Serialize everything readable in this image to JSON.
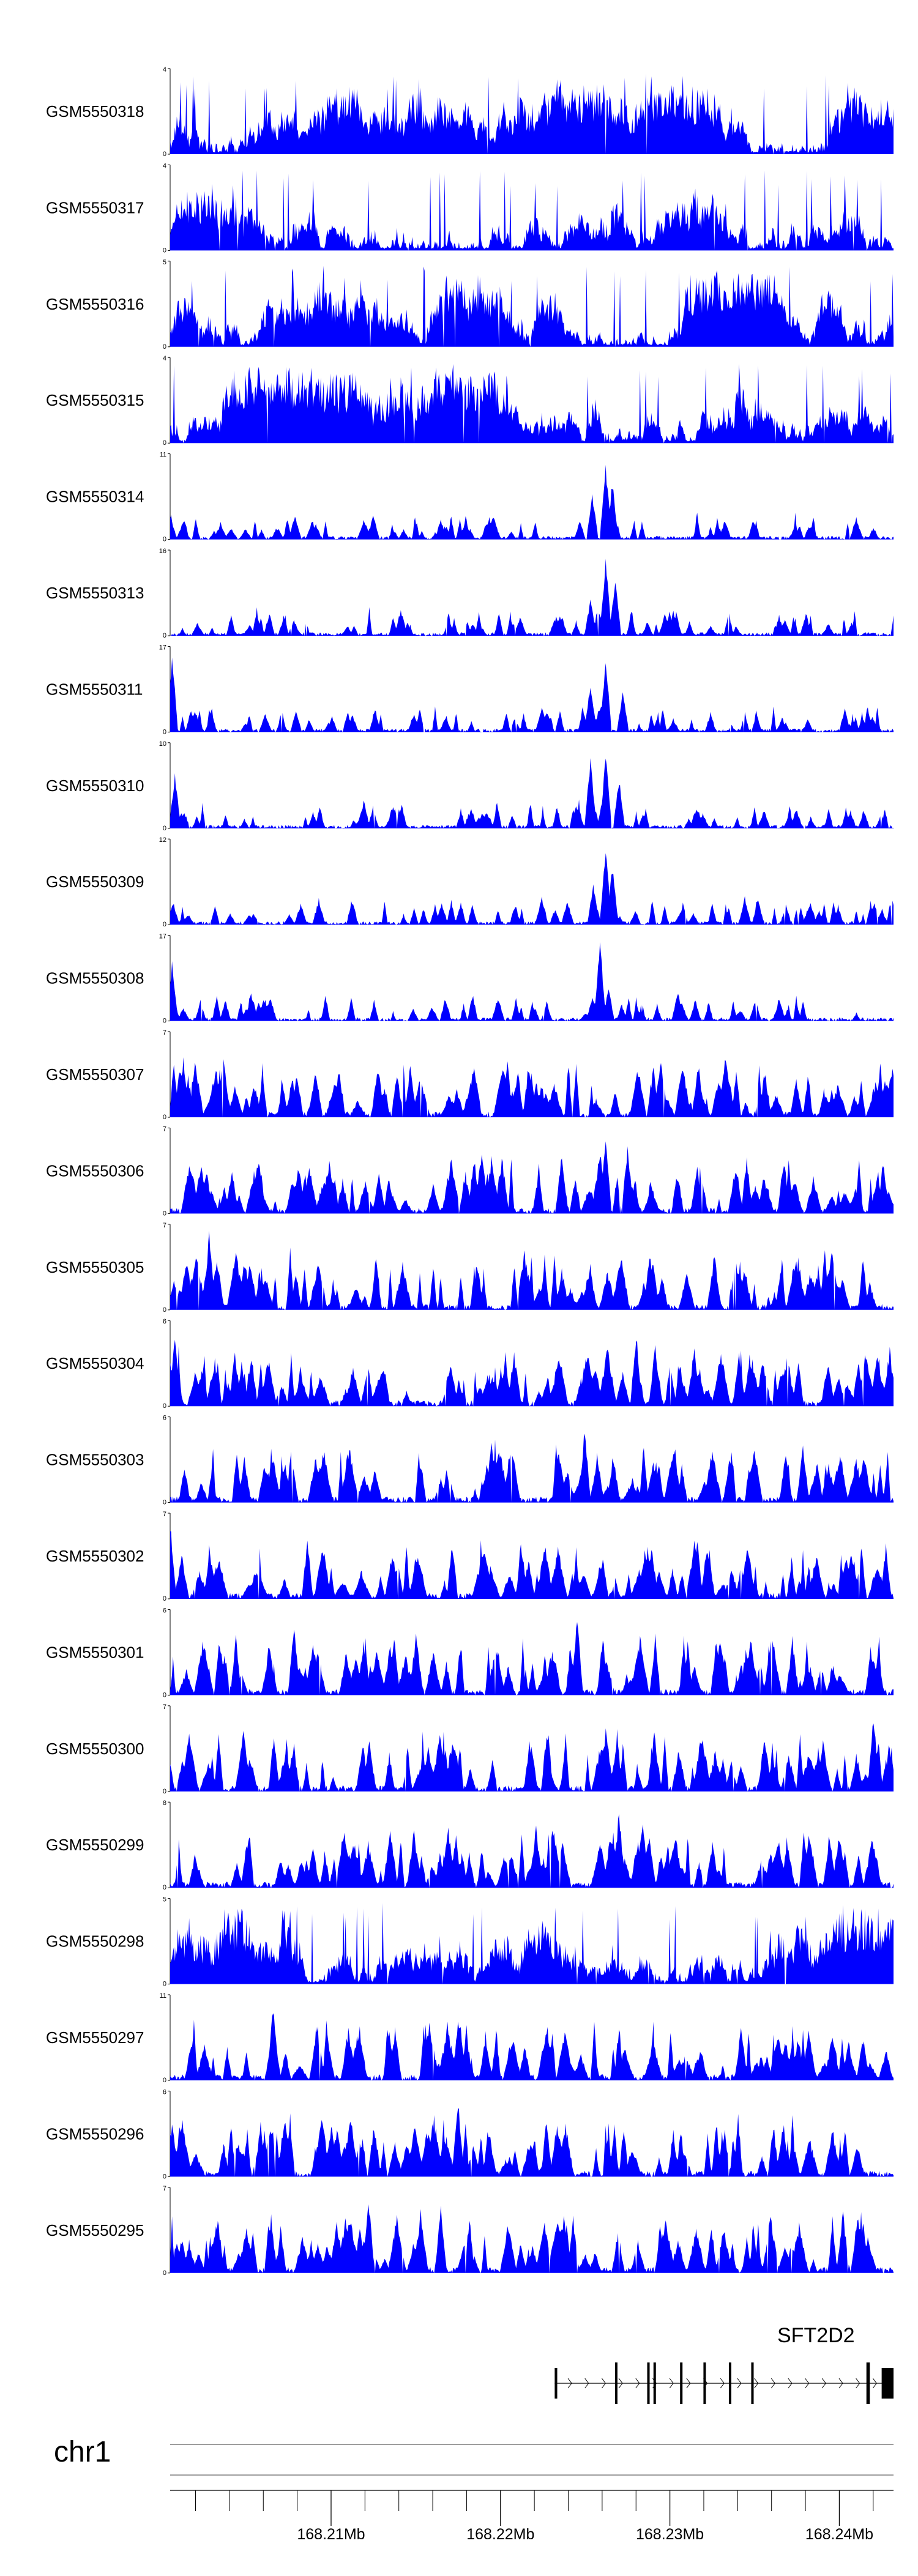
{
  "colors": {
    "signal": "#0000ff",
    "axis": "#000000",
    "ideogram": "#9e9e9e"
  },
  "chart_data": {
    "type": "area",
    "xlim": [
      168.2005,
      168.2432
    ],
    "tracks": [
      {
        "name": "GSM5550318",
        "ymax": "4",
        "ymin": "0",
        "ylim": [
          0,
          4
        ],
        "seed": 318,
        "shape": "even",
        "peaks": []
      },
      {
        "name": "GSM5550317",
        "ymax": "4",
        "ymin": "0",
        "ylim": [
          0,
          4
        ],
        "seed": 317,
        "shape": "even",
        "peaks": []
      },
      {
        "name": "GSM5550316",
        "ymax": "5",
        "ymin": "0",
        "ylim": [
          0,
          5
        ],
        "seed": 316,
        "shape": "even",
        "peaks": []
      },
      {
        "name": "GSM5550315",
        "ymax": "4",
        "ymin": "0",
        "ylim": [
          0,
          4
        ],
        "seed": 315,
        "shape": "even",
        "peaks": []
      },
      {
        "name": "GSM5550314",
        "ymax": "11",
        "ymin": "0",
        "ylim": [
          0,
          11
        ],
        "seed": 314,
        "shape": "low",
        "peaks": [
          [
            168.2254,
            0.55
          ],
          [
            168.2262,
            0.9
          ],
          [
            168.2266,
            0.7
          ]
        ]
      },
      {
        "name": "GSM5550313",
        "ymax": "16",
        "ymin": "0",
        "ylim": [
          0,
          16
        ],
        "seed": 313,
        "shape": "low",
        "peaks": [
          [
            168.2262,
            0.95
          ],
          [
            168.2268,
            0.7
          ],
          [
            168.2253,
            0.45
          ]
        ]
      },
      {
        "name": "GSM5550311",
        "ymax": "17",
        "ymin": "0",
        "ylim": [
          0,
          17
        ],
        "seed": 311,
        "shape": "low",
        "peaks": [
          [
            168.2006,
            0.95
          ],
          [
            168.2262,
            0.9
          ],
          [
            168.2253,
            0.6
          ],
          [
            168.2272,
            0.5
          ]
        ]
      },
      {
        "name": "GSM5550310",
        "ymax": "10",
        "ymin": "0",
        "ylim": [
          0,
          10
        ],
        "seed": 310,
        "shape": "low",
        "peaks": [
          [
            168.2008,
            0.65
          ],
          [
            168.2253,
            0.85
          ],
          [
            168.2262,
            0.9
          ],
          [
            168.227,
            0.6
          ]
        ]
      },
      {
        "name": "GSM5550309",
        "ymax": "12",
        "ymin": "0",
        "ylim": [
          0,
          12
        ],
        "seed": 309,
        "shape": "low",
        "peaks": [
          [
            168.2262,
            0.95
          ],
          [
            168.2266,
            0.7
          ],
          [
            168.2255,
            0.5
          ]
        ]
      },
      {
        "name": "GSM5550308",
        "ymax": "17",
        "ymin": "0",
        "ylim": [
          0,
          17
        ],
        "seed": 308,
        "shape": "low",
        "peaks": [
          [
            168.2006,
            0.7
          ],
          [
            168.2259,
            0.98
          ],
          [
            168.2254,
            0.3
          ],
          [
            168.2264,
            0.4
          ]
        ]
      },
      {
        "name": "GSM5550307",
        "ymax": "7",
        "ymin": "0",
        "ylim": [
          0,
          7
        ],
        "seed": 307,
        "shape": "spiky",
        "peaks": []
      },
      {
        "name": "GSM5550306",
        "ymax": "7",
        "ymin": "0",
        "ylim": [
          0,
          7
        ],
        "seed": 306,
        "shape": "spiky",
        "peaks": [
          [
            168.2262,
            0.9
          ],
          [
            168.2275,
            0.85
          ]
        ]
      },
      {
        "name": "GSM5550305",
        "ymax": "7",
        "ymin": "0",
        "ylim": [
          0,
          7
        ],
        "seed": 305,
        "shape": "spiky",
        "peaks": [
          [
            168.2028,
            0.95
          ]
        ]
      },
      {
        "name": "GSM5550304",
        "ymax": "6",
        "ymin": "0",
        "ylim": [
          0,
          6
        ],
        "seed": 304,
        "shape": "spiky",
        "peaks": [
          [
            168.2008,
            0.9
          ],
          [
            168.228,
            0.9
          ]
        ]
      },
      {
        "name": "GSM5550303",
        "ymax": "6",
        "ymin": "0",
        "ylim": [
          0,
          6
        ],
        "seed": 303,
        "shape": "spiky",
        "peaks": [
          [
            168.225,
            0.9
          ]
        ]
      },
      {
        "name": "GSM5550302",
        "ymax": "7",
        "ymin": "0",
        "ylim": [
          0,
          7
        ],
        "seed": 302,
        "shape": "spiky",
        "peaks": [
          [
            168.2005,
            0.95
          ]
        ]
      },
      {
        "name": "GSM5550301",
        "ymax": "6",
        "ymin": "0",
        "ylim": [
          0,
          6
        ],
        "seed": 301,
        "shape": "spiky",
        "peaks": [
          [
            168.2078,
            0.85
          ],
          [
            168.2245,
            0.95
          ]
        ]
      },
      {
        "name": "GSM5550300",
        "ymax": "7",
        "ymin": "0",
        "ylim": [
          0,
          7
        ],
        "seed": 300,
        "shape": "spiky",
        "peaks": [
          [
            168.242,
            0.95
          ]
        ]
      },
      {
        "name": "GSM5550299",
        "ymax": "8",
        "ymin": "0",
        "ylim": [
          0,
          8
        ],
        "seed": 299,
        "shape": "spiky",
        "peaks": [
          [
            168.227,
            0.95
          ]
        ]
      },
      {
        "name": "GSM5550298",
        "ymax": "5",
        "ymin": "0",
        "ylim": [
          0,
          5
        ],
        "seed": 298,
        "shape": "even",
        "peaks": []
      },
      {
        "name": "GSM5550297",
        "ymax": "11",
        "ymin": "0",
        "ylim": [
          0,
          11
        ],
        "seed": 297,
        "shape": "spiky",
        "peaks": [
          [
            168.2066,
            0.95
          ]
        ]
      },
      {
        "name": "GSM5550296",
        "ymax": "6",
        "ymin": "0",
        "ylim": [
          0,
          6
        ],
        "seed": 296,
        "shape": "spiky",
        "peaks": [
          [
            168.2175,
            0.95
          ]
        ]
      },
      {
        "name": "GSM5550295",
        "ymax": "7",
        "ymin": "0",
        "ylim": [
          0,
          7
        ],
        "seed": 295,
        "shape": "spiky",
        "peaks": [
          [
            168.2122,
            0.95
          ],
          [
            168.2165,
            0.8
          ]
        ]
      }
    ],
    "gene": {
      "name": "SFT2D2",
      "chrom": "chr1",
      "strand": "+",
      "start": 168.2232,
      "end": 168.2432,
      "exons": [
        [
          168.2232,
          168.22335
        ],
        [
          168.22676,
          168.22688
        ],
        [
          168.22866,
          168.2288
        ],
        [
          168.22903,
          168.22916
        ],
        [
          168.2306,
          168.23072
        ],
        [
          168.23198,
          168.23212
        ],
        [
          168.23348,
          168.2336
        ],
        [
          168.2348,
          168.2349
        ],
        [
          168.2416,
          168.2418
        ],
        [
          168.2425,
          168.2432
        ]
      ]
    },
    "axis": {
      "chrom": "chr1",
      "major_ticks": [
        {
          "pos": 168.21,
          "label": "168.21Mb"
        },
        {
          "pos": 168.22,
          "label": "168.22Mb"
        },
        {
          "pos": 168.23,
          "label": "168.23Mb"
        },
        {
          "pos": 168.24,
          "label": "168.24Mb"
        }
      ],
      "minor_step": 0.002
    }
  }
}
